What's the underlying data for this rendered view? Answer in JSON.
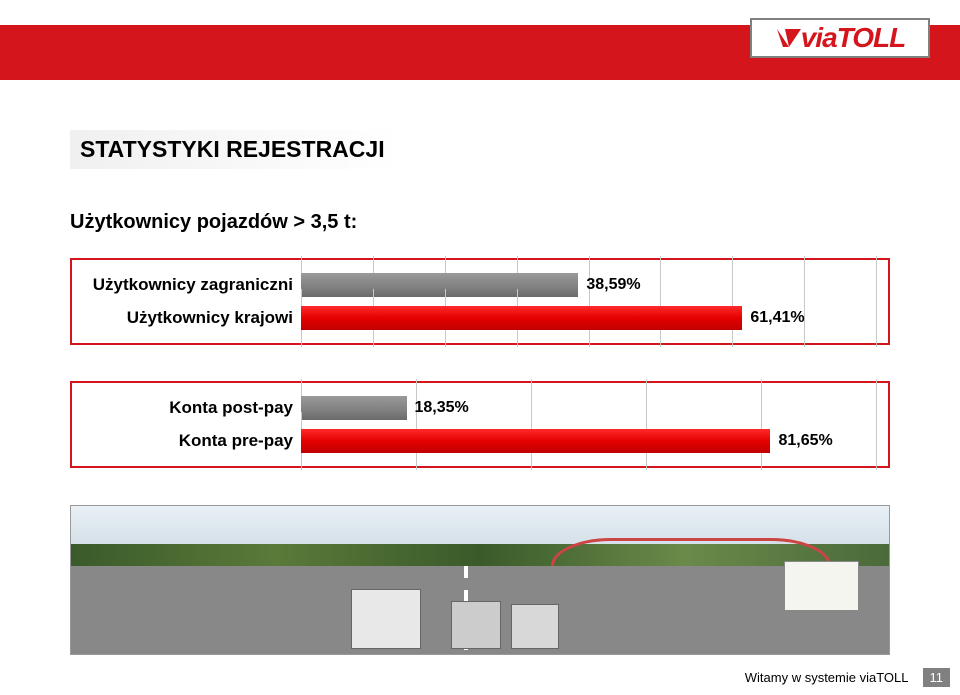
{
  "header": {
    "band_color": "#d4161c",
    "logo_text_via": "via",
    "logo_text_toll": "TOLL"
  },
  "title": "STATYSTYKI REJESTRACJI",
  "subtitle": "Użytkownicy pojazdów > 3,5 t:",
  "chart1": {
    "type": "bar",
    "border_color": "#d4161c",
    "rows": [
      {
        "label": "Użytkownicy zagraniczni",
        "value_pct": 38.59,
        "value_text": "38,59%",
        "bar_color": "#808080"
      },
      {
        "label": "Użytkownicy krajowi",
        "value_pct": 61.41,
        "value_text": "61,41%",
        "bar_color": "#e40000"
      }
    ],
    "xmax": 80,
    "grid_step": 10
  },
  "chart2": {
    "type": "bar",
    "border_color": "#d4161c",
    "rows": [
      {
        "label": "Konta post-pay",
        "value_pct": 18.35,
        "value_text": "18,35%",
        "bar_color": "#808080"
      },
      {
        "label": "Konta pre-pay",
        "value_pct": 81.65,
        "value_text": "81,65%",
        "bar_color": "#e40000"
      }
    ],
    "xmax": 100,
    "grid_step": 20
  },
  "footer": {
    "text": "Witamy w systemie viaTOLL",
    "page": "11"
  }
}
